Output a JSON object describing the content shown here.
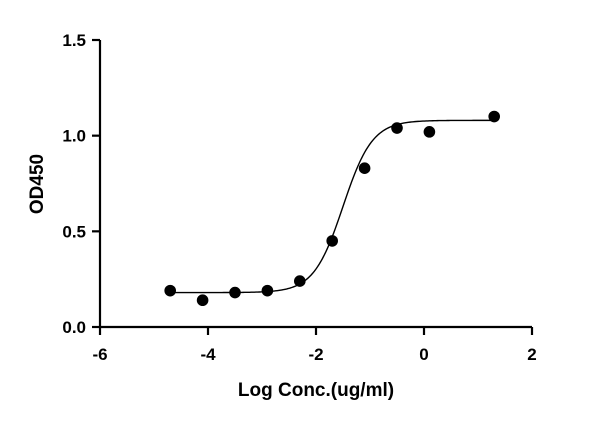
{
  "chart_data": {
    "type": "scatter",
    "xlabel": "Log Conc.(ug/ml)",
    "ylabel": "OD450",
    "xlim": [
      -6,
      2
    ],
    "ylim": [
      0,
      1.5
    ],
    "x_ticks": [
      -6,
      -4,
      -2,
      0,
      2
    ],
    "y_ticks": [
      0.0,
      0.5,
      1.0,
      1.5
    ],
    "x_tick_labels": [
      "-6",
      "-4",
      "-2",
      "0",
      "2"
    ],
    "y_tick_labels": [
      "0.0",
      "0.5",
      "1.0",
      "1.5"
    ],
    "grid": false,
    "legend": "none",
    "series": [
      {
        "marker": "filled-circle",
        "color": "#000000",
        "x": [
          -4.7,
          -4.1,
          -3.5,
          -2.9,
          -2.3,
          -1.7,
          -1.1,
          -0.5,
          0.1,
          1.3
        ],
        "y": [
          0.19,
          0.14,
          0.18,
          0.19,
          0.24,
          0.45,
          0.83,
          1.04,
          1.02,
          1.1
        ]
      }
    ],
    "fit_curve": {
      "model": "4PL",
      "color": "#000000",
      "bottom": 0.18,
      "top": 1.08,
      "log_ec50": -1.5,
      "hill_slope": 1.6,
      "x_range": [
        -4.7,
        1.3
      ]
    }
  }
}
